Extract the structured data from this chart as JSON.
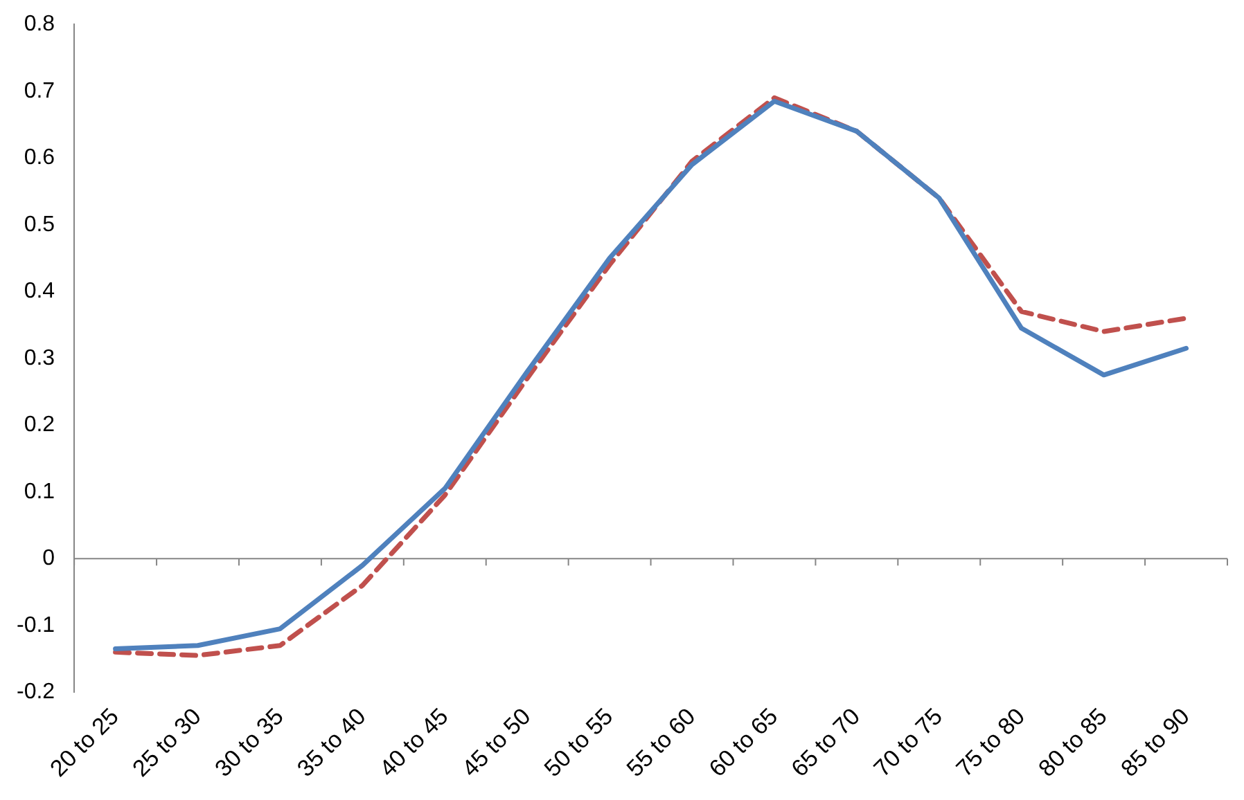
{
  "chart_data": {
    "type": "line",
    "categories": [
      "20 to 25",
      "25 to 30",
      "30 to 35",
      "35 to 40",
      "40 to 45",
      "45 to 50",
      "50 to 55",
      "55 to 60",
      "60 to 65",
      "65 to 70",
      "70 to 75",
      "75 to 80",
      "80 to 85",
      "85 to 90"
    ],
    "series": [
      {
        "color": "#4f81bd",
        "line_style": "solid",
        "values": [
          -0.135,
          -0.13,
          -0.105,
          -0.01,
          0.105,
          0.28,
          0.45,
          0.59,
          0.685,
          0.64,
          0.54,
          0.345,
          0.275,
          0.315
        ]
      },
      {
        "color": "#c0504d",
        "line_style": "dashed",
        "values": [
          -0.14,
          -0.145,
          -0.13,
          -0.04,
          0.095,
          0.27,
          0.44,
          0.595,
          0.69,
          0.64,
          0.54,
          0.37,
          0.34,
          0.36
        ]
      }
    ],
    "ylim": [
      -0.2,
      0.8
    ],
    "yticks": [
      -0.2,
      -0.1,
      0,
      0.1,
      0.2,
      0.3,
      0.4,
      0.5,
      0.6,
      0.7,
      0.8
    ],
    "ref_lines": [
      {
        "axis": "y",
        "value": 0,
        "color": "#868686"
      }
    ],
    "grid": false,
    "legend": false,
    "marker": "none"
  }
}
